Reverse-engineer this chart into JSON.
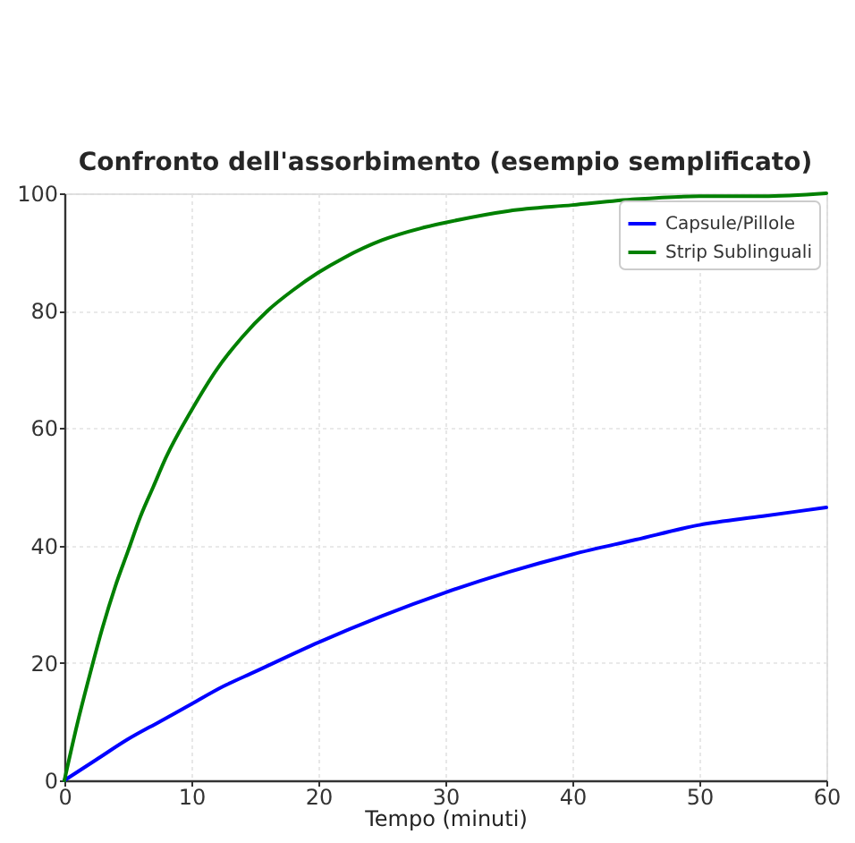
{
  "chart_data": {
    "type": "line",
    "title": "Confronto dell'assorbimento (esempio semplificato)",
    "xlabel": "Tempo (minuti)",
    "series": [
      {
        "name": "Capsule/Pillole",
        "color": "#0000ff",
        "x": [
          0,
          2.5,
          5,
          7.5,
          10,
          12.5,
          15,
          20,
          25,
          30,
          35,
          40,
          45,
          50,
          55,
          60
        ],
        "values": [
          0,
          3.5,
          7,
          10,
          13,
          16,
          18.5,
          23.5,
          28,
          32,
          35.5,
          38.5,
          41,
          43.5,
          45,
          46.5
        ]
      },
      {
        "name": "Strip Sublinguali",
        "color": "#008000",
        "x": [
          0,
          1,
          2,
          3,
          4,
          5,
          6,
          7,
          8,
          10,
          12,
          14,
          16,
          18,
          20,
          22,
          25,
          28,
          30,
          35,
          40,
          45,
          50,
          55,
          60
        ],
        "values": [
          0,
          9.5,
          18,
          26,
          33,
          39,
          45,
          50,
          55,
          63,
          70,
          75.5,
          80,
          83.5,
          86.5,
          89,
          92,
          94,
          95,
          97,
          98,
          99,
          99.5,
          99.5,
          100
        ]
      }
    ],
    "xlim": [
      0,
      60
    ],
    "ylim": [
      0,
      100
    ],
    "xticks": [
      0,
      10,
      20,
      30,
      40,
      50,
      60
    ],
    "yticks": [
      0,
      20,
      40,
      60,
      80,
      100
    ],
    "grid": true,
    "legend": "top right",
    "line_style": "solid"
  }
}
